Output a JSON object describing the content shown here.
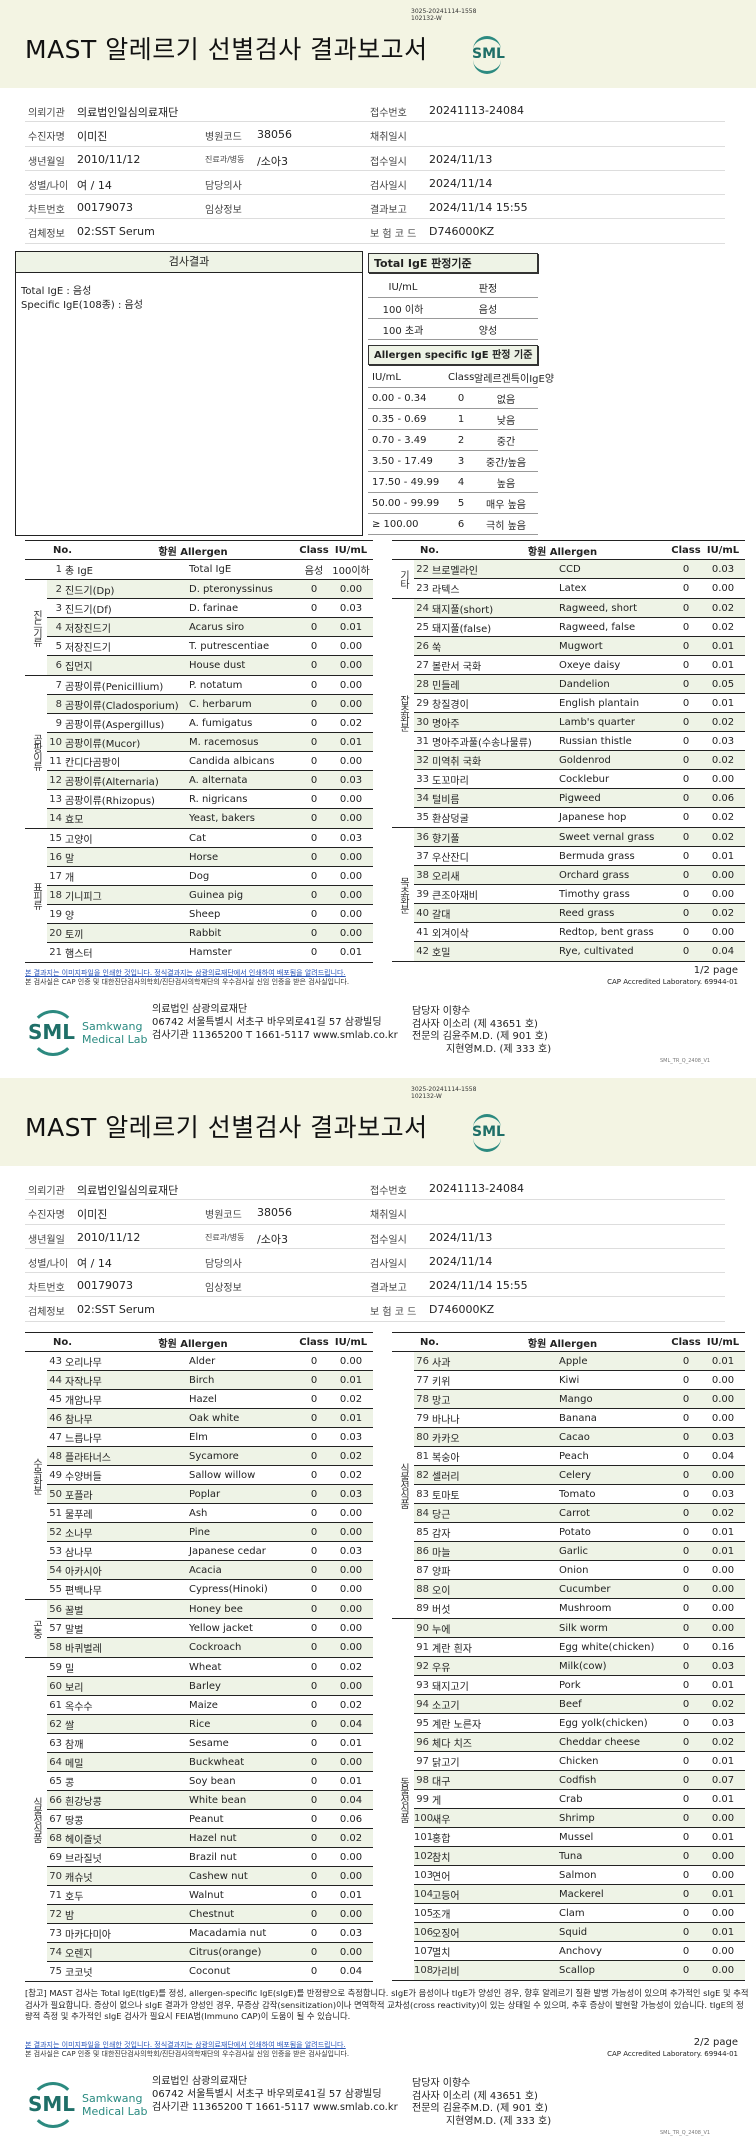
{
  "report": {
    "title": "MAST 알레르기 선별검사 결과보고서",
    "doc_code": [
      "3025-20241114-1558",
      "102132-W"
    ],
    "logo": "SML"
  },
  "info": {
    "labels": {
      "institution": "의뢰기관",
      "patient": "수진자명",
      "birth": "생년월일",
      "sex_age": "성별/나이",
      "chart": "차트번호",
      "specimen": "검체정보",
      "hosp_code": "병원코드",
      "dept": "진료과/병동",
      "doctor": "담당의사",
      "clinical": "임상정보",
      "receipt_no": "접수번호",
      "collect": "채취일시",
      "receipt_date": "접수일시",
      "test_date": "검사일시",
      "report_date": "결과보고",
      "ins_code": "보 험 코 드"
    },
    "institution": "의료법인일심의료재단",
    "patient": "이미진",
    "birth": "2010/11/12",
    "sex_age": "여 / 14",
    "chart": "00179073",
    "specimen": "02:SST Serum",
    "hosp_code": "38056",
    "dept": "/소아3",
    "doctor": "",
    "clinical": "",
    "receipt_no": "20241113-24084",
    "collect": "",
    "receipt_date": "2024/11/13",
    "test_date": "2024/11/14",
    "report_date": "2024/11/14 15:55",
    "ins_code": "D746000KZ"
  },
  "results": {
    "title": "검사결과",
    "lines": [
      "Total IgE : 음성",
      "Specific IgE(108종) : 음성"
    ]
  },
  "total_criteria": {
    "title": "Total IgE 판정기준",
    "headers": [
      "IU/mL",
      "판정"
    ],
    "rows": [
      [
        "100 이하",
        "음성"
      ],
      [
        "100 초과",
        "양성"
      ]
    ]
  },
  "specific_criteria": {
    "title": "Allergen specific IgE 판정 기준",
    "headers": [
      "IU/mL",
      "Class",
      "알레르겐특이IgE양"
    ],
    "rows": [
      [
        "0.00 - 0.34",
        "0",
        "없음"
      ],
      [
        "0.35 - 0.69",
        "1",
        "낮음"
      ],
      [
        "0.70 - 3.49",
        "2",
        "중간"
      ],
      [
        "3.50 - 17.49",
        "3",
        "중간/높음"
      ],
      [
        "17.50 - 49.99",
        "4",
        "높음"
      ],
      [
        "50.00 - 99.99",
        "5",
        "매우 높음"
      ],
      [
        "≥ 100.00",
        "6",
        "극히 높음"
      ]
    ]
  },
  "table_headers": {
    "no": "No.",
    "allergen": "항원 Allergen",
    "class": "Class",
    "iu": "IU/mL"
  },
  "tables": [
    {
      "groups": [
        {
          "label": "",
          "rows": [
            [
              "1",
              "총 IgE",
              "Total IgE",
              "음성",
              "100이하"
            ]
          ]
        },
        {
          "label": "진드기류",
          "rows": [
            [
              "2",
              "진드기(Dp)",
              "D. pteronyssinus",
              "0",
              "0.00"
            ],
            [
              "3",
              "진드기(Df)",
              "D. farinae",
              "0",
              "0.03"
            ],
            [
              "4",
              "저장진드기",
              "Acarus siro",
              "0",
              "0.01"
            ],
            [
              "5",
              "저장진드기",
              "T. putrescentiae",
              "0",
              "0.00"
            ],
            [
              "6",
              "집먼지",
              "House dust",
              "0",
              "0.00"
            ]
          ]
        },
        {
          "label": "곰팡이류",
          "rows": [
            [
              "7",
              "곰팡이류(Penicillium)",
              "P. notatum",
              "0",
              "0.00"
            ],
            [
              "8",
              "곰팡이류(Cladosporium)",
              "C. herbarum",
              "0",
              "0.00"
            ],
            [
              "9",
              "곰팡이류(Aspergillus)",
              "A. fumigatus",
              "0",
              "0.02"
            ],
            [
              "10",
              "곰팡이류(Mucor)",
              "M. racemosus",
              "0",
              "0.01"
            ],
            [
              "11",
              "칸디다곰팡이",
              "Candida albicans",
              "0",
              "0.00"
            ],
            [
              "12",
              "곰팡이류(Alternaria)",
              "A. alternata",
              "0",
              "0.03"
            ],
            [
              "13",
              "곰팡이류(Rhizopus)",
              "R. nigricans",
              "0",
              "0.00"
            ],
            [
              "14",
              "효모",
              "Yeast, bakers",
              "0",
              "0.00"
            ]
          ]
        },
        {
          "label": "표피류",
          "rows": [
            [
              "15",
              "고양이",
              "Cat",
              "0",
              "0.03"
            ],
            [
              "16",
              "말",
              "Horse",
              "0",
              "0.00"
            ],
            [
              "17",
              "개",
              "Dog",
              "0",
              "0.00"
            ],
            [
              "18",
              "기니피그",
              "Guinea pig",
              "0",
              "0.00"
            ],
            [
              "19",
              "양",
              "Sheep",
              "0",
              "0.00"
            ],
            [
              "20",
              "토끼",
              "Rabbit",
              "0",
              "0.00"
            ],
            [
              "21",
              "햄스터",
              "Hamster",
              "0",
              "0.01"
            ]
          ]
        }
      ]
    },
    {
      "groups": [
        {
          "label": "기타",
          "rows": [
            [
              "22",
              "브로멜라인",
              "CCD",
              "0",
              "0.03"
            ],
            [
              "23",
              "라텍스",
              "Latex",
              "0",
              "0.00"
            ]
          ]
        },
        {
          "label": "잡초화분",
          "rows": [
            [
              "24",
              "돼지풀(short)",
              "Ragweed, short",
              "0",
              "0.02"
            ],
            [
              "25",
              "돼지풀(false)",
              "Ragweed, false",
              "0",
              "0.02"
            ],
            [
              "26",
              "쑥",
              "Mugwort",
              "0",
              "0.01"
            ],
            [
              "27",
              "볼란서 국화",
              "Oxeye daisy",
              "0",
              "0.01"
            ],
            [
              "28",
              "민들레",
              "Dandelion",
              "0",
              "0.05"
            ],
            [
              "29",
              "창질경이",
              "English plantain",
              "0",
              "0.01"
            ],
            [
              "30",
              "명아주",
              "Lamb's quarter",
              "0",
              "0.02"
            ],
            [
              "31",
              "명아주과풀(수송나물류)",
              "Russian thistle",
              "0",
              "0.03"
            ],
            [
              "32",
              "미역취 국화",
              "Goldenrod",
              "0",
              "0.02"
            ],
            [
              "33",
              "도꼬마리",
              "Cocklebur",
              "0",
              "0.00"
            ],
            [
              "34",
              "털비름",
              "Pigweed",
              "0",
              "0.06"
            ],
            [
              "35",
              "환삼덩굴",
              "Japanese hop",
              "0",
              "0.02"
            ]
          ]
        },
        {
          "label": "목초화분",
          "rows": [
            [
              "36",
              "향기풀",
              "Sweet vernal grass",
              "0",
              "0.02"
            ],
            [
              "37",
              "우산잔디",
              "Bermuda grass",
              "0",
              "0.01"
            ],
            [
              "38",
              "오리새",
              "Orchard grass",
              "0",
              "0.00"
            ],
            [
              "39",
              "큰조아재비",
              "Timothy grass",
              "0",
              "0.00"
            ],
            [
              "40",
              "갈대",
              "Reed grass",
              "0",
              "0.02"
            ],
            [
              "41",
              "외겨이삭",
              "Redtop, bent grass",
              "0",
              "0.00"
            ],
            [
              "42",
              "호밀",
              "Rye, cultivated",
              "0",
              "0.04"
            ]
          ]
        }
      ]
    },
    {
      "groups": [
        {
          "label": "수목화분",
          "rows": [
            [
              "43",
              "오리나무",
              "Alder",
              "0",
              "0.00"
            ],
            [
              "44",
              "자작나무",
              "Birch",
              "0",
              "0.01"
            ],
            [
              "45",
              "개암나무",
              "Hazel",
              "0",
              "0.02"
            ],
            [
              "46",
              "참나무",
              "Oak white",
              "0",
              "0.01"
            ],
            [
              "47",
              "느릅나무",
              "Elm",
              "0",
              "0.03"
            ],
            [
              "48",
              "플라타너스",
              "Sycamore",
              "0",
              "0.02"
            ],
            [
              "49",
              "수양버들",
              "Sallow willow",
              "0",
              "0.02"
            ],
            [
              "50",
              "포플라",
              "Poplar",
              "0",
              "0.03"
            ],
            [
              "51",
              "물푸레",
              "Ash",
              "0",
              "0.00"
            ],
            [
              "52",
              "소나무",
              "Pine",
              "0",
              "0.00"
            ],
            [
              "53",
              "삼나무",
              "Japanese cedar",
              "0",
              "0.03"
            ],
            [
              "54",
              "아카시아",
              "Acacia",
              "0",
              "0.00"
            ],
            [
              "55",
              "편백나무",
              "Cypress(Hinoki)",
              "0",
              "0.00"
            ]
          ]
        },
        {
          "label": "곤충",
          "rows": [
            [
              "56",
              "꿀벌",
              "Honey bee",
              "0",
              "0.00"
            ],
            [
              "57",
              "말벌",
              "Yellow jacket",
              "0",
              "0.00"
            ],
            [
              "58",
              "바퀴벌레",
              "Cockroach",
              "0",
              "0.00"
            ]
          ]
        },
        {
          "label": "식물성식품",
          "rows": [
            [
              "59",
              "밀",
              "Wheat",
              "0",
              "0.02"
            ],
            [
              "60",
              "보리",
              "Barley",
              "0",
              "0.00"
            ],
            [
              "61",
              "옥수수",
              "Maize",
              "0",
              "0.02"
            ],
            [
              "62",
              "쌀",
              "Rice",
              "0",
              "0.04"
            ],
            [
              "63",
              "참깨",
              "Sesame",
              "0",
              "0.01"
            ],
            [
              "64",
              "메밀",
              "Buckwheat",
              "0",
              "0.00"
            ],
            [
              "65",
              "콩",
              "Soy bean",
              "0",
              "0.01"
            ],
            [
              "66",
              "흰강낭콩",
              "White bean",
              "0",
              "0.04"
            ],
            [
              "67",
              "땅콩",
              "Peanut",
              "0",
              "0.06"
            ],
            [
              "68",
              "헤이즐넛",
              "Hazel nut",
              "0",
              "0.02"
            ],
            [
              "69",
              "브라질넛",
              "Brazil nut",
              "0",
              "0.00"
            ],
            [
              "70",
              "캐슈넛",
              "Cashew nut",
              "0",
              "0.00"
            ],
            [
              "71",
              "호두",
              "Walnut",
              "0",
              "0.01"
            ],
            [
              "72",
              "밤",
              "Chestnut",
              "0",
              "0.00"
            ],
            [
              "73",
              "마카다미아",
              "Macadamia nut",
              "0",
              "0.03"
            ],
            [
              "74",
              "오렌지",
              "Citrus(orange)",
              "0",
              "0.00"
            ],
            [
              "75",
              "코코넛",
              "Coconut",
              "0",
              "0.04"
            ]
          ]
        }
      ]
    },
    {
      "groups": [
        {
          "label": "식물성식품",
          "rows": [
            [
              "76",
              "사과",
              "Apple",
              "0",
              "0.01"
            ],
            [
              "77",
              "키위",
              "Kiwi",
              "0",
              "0.00"
            ],
            [
              "78",
              "망고",
              "Mango",
              "0",
              "0.00"
            ],
            [
              "79",
              "바나나",
              "Banana",
              "0",
              "0.00"
            ],
            [
              "80",
              "카카오",
              "Cacao",
              "0",
              "0.03"
            ],
            [
              "81",
              "복숭아",
              "Peach",
              "0",
              "0.04"
            ],
            [
              "82",
              "셀러리",
              "Celery",
              "0",
              "0.00"
            ],
            [
              "83",
              "토마토",
              "Tomato",
              "0",
              "0.03"
            ],
            [
              "84",
              "당근",
              "Carrot",
              "0",
              "0.02"
            ],
            [
              "85",
              "감자",
              "Potato",
              "0",
              "0.01"
            ],
            [
              "86",
              "마늘",
              "Garlic",
              "0",
              "0.01"
            ],
            [
              "87",
              "양파",
              "Onion",
              "0",
              "0.00"
            ],
            [
              "88",
              "오이",
              "Cucumber",
              "0",
              "0.00"
            ],
            [
              "89",
              "버섯",
              "Mushroom",
              "0",
              "0.00"
            ]
          ]
        },
        {
          "label": "동물성식품",
          "rows": [
            [
              "90",
              "누에",
              "Silk worm",
              "0",
              "0.00"
            ],
            [
              "91",
              "계란 흰자",
              "Egg white(chicken)",
              "0",
              "0.16"
            ],
            [
              "92",
              "우유",
              "Milk(cow)",
              "0",
              "0.03"
            ],
            [
              "93",
              "돼지고기",
              "Pork",
              "0",
              "0.01"
            ],
            [
              "94",
              "소고기",
              "Beef",
              "0",
              "0.02"
            ],
            [
              "95",
              "계란 노른자",
              "Egg yolk(chicken)",
              "0",
              "0.03"
            ],
            [
              "96",
              "체다 치즈",
              "Cheddar cheese",
              "0",
              "0.02"
            ],
            [
              "97",
              "닭고기",
              "Chicken",
              "0",
              "0.01"
            ],
            [
              "98",
              "대구",
              "Codfish",
              "0",
              "0.07"
            ],
            [
              "99",
              "게",
              "Crab",
              "0",
              "0.01"
            ],
            [
              "100",
              "새우",
              "Shrimp",
              "0",
              "0.00"
            ],
            [
              "101",
              "홍합",
              "Mussel",
              "0",
              "0.01"
            ],
            [
              "102",
              "참치",
              "Tuna",
              "0",
              "0.00"
            ],
            [
              "103",
              "연어",
              "Salmon",
              "0",
              "0.00"
            ],
            [
              "104",
              "고등어",
              "Mackerel",
              "0",
              "0.01"
            ],
            [
              "105",
              "조개",
              "Clam",
              "0",
              "0.00"
            ],
            [
              "106",
              "오징어",
              "Squid",
              "0",
              "0.01"
            ],
            [
              "107",
              "멸치",
              "Anchovy",
              "0",
              "0.00"
            ],
            [
              "108",
              "가리비",
              "Scallop",
              "0",
              "0.00"
            ]
          ]
        }
      ]
    }
  ],
  "note": "[참고] MAST 검사는 Total IgE(tIgE)를 정성, allergen-specific IgE(sIgE)를 반정량으로 측정합니다. sIgE가 음성이나 tIgE가 양성인 경우, 향후 알레르기 질환 발병 가능성이 있으며 추가적인 sIgE 및 추적검사가 필요합니다. 증상이 없으나 sIgE 결과가 양성인 경우, 무증상 감작(sensitization)이나 면역학적 교차성(cross reactivity)이 있는 상태일 수 있으며, 추후 증상이 발현할 가능성이 있습니다. tIgE의 정량적 측정 및 추가적인 sIgE 검사가 필요시 FEIA법(Immuno CAP)이 도움이 될 수 있습니다.",
  "footer": {
    "disclaimer": "본 결과지는 이미지파일을 인쇄한 것입니다. 정식결과지는 삼광의료재단에서 인쇄하여 배포됨을 알려드립니다.",
    "accreditation": "본 검사실은 CAP 인증 및 대한진단검사의학회/진단검사의학재단의 우수검사실 신임 인증을 받은 검사실입니다.",
    "pages": [
      "1/2 page",
      "2/2 page"
    ],
    "cap": "CAP Accredited Laboratory. 69944-01",
    "lab_name": [
      "Samkwang",
      "Medical Lab"
    ],
    "address": [
      "의료법인 삼광의료재단",
      "06742 서울특별시 서초구 바우뫼로41길 57 삼광빌딩",
      "검사기관 11365200 T 1661-5117 www.smlab.co.kr"
    ],
    "staff": [
      "담당자 이향수",
      "검사자 이소리 (제 43651 호)",
      "전문의 김윤주M.D. (제 901 호)",
      "지현영M.D. (제 333 호)"
    ],
    "version": "SML_TR_Q_2408_V1"
  }
}
